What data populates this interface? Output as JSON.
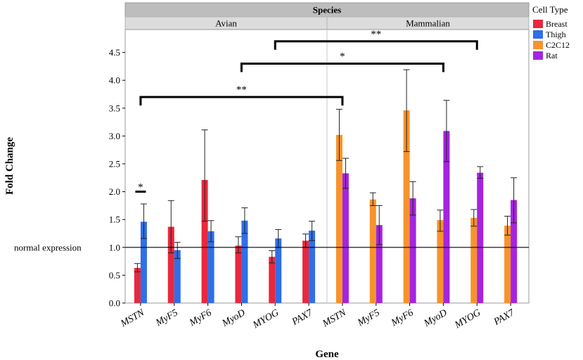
{
  "chart_data": {
    "type": "bar",
    "title": "",
    "xlabel": "Gene",
    "ylabel": "Fold Change",
    "ylim": [
      0,
      4.8
    ],
    "yticks": [
      "0.0",
      "0.5",
      "1.0",
      "1.5",
      "2.0",
      "2.5",
      "3.0",
      "3.5",
      "4.0",
      "4.5"
    ],
    "reference_line": {
      "value": 1.0,
      "label": "normal expression"
    },
    "facet_header": "Species",
    "legend_title": "Cell Type",
    "legend": [
      {
        "name": "Breast",
        "color": "#e8283c"
      },
      {
        "name": "Thigh",
        "color": "#2f6fe8"
      },
      {
        "name": "C2C12",
        "color": "#f7932b"
      },
      {
        "name": "Rat",
        "color": "#a524e0"
      }
    ],
    "panels": [
      {
        "name": "Avian",
        "categories": [
          "MSTN",
          "MyF5",
          "MyF6",
          "MyoD",
          "MYOG",
          "PAX7"
        ],
        "series": [
          {
            "name": "Breast",
            "color": "#e8283c",
            "values": [
              0.63,
              1.37,
              2.21,
              1.03,
              0.83,
              1.12
            ],
            "err_low": [
              0.56,
              0.9,
              1.47,
              0.9,
              0.72,
              1.0
            ],
            "err_high": [
              0.71,
              1.84,
              3.11,
              1.19,
              0.94,
              1.24
            ]
          },
          {
            "name": "Thigh",
            "color": "#2f6fe8",
            "values": [
              1.46,
              0.95,
              1.29,
              1.48,
              1.16,
              1.3
            ],
            "err_low": [
              1.16,
              0.8,
              1.1,
              1.25,
              1.0,
              1.12
            ],
            "err_high": [
              1.78,
              1.09,
              1.48,
              1.71,
              1.32,
              1.47
            ]
          }
        ]
      },
      {
        "name": "Mammalian",
        "categories": [
          "MSTN",
          "MyF5",
          "MyF6",
          "MyoD",
          "MYOG",
          "PAX7"
        ],
        "series": [
          {
            "name": "C2C12",
            "color": "#f7932b",
            "values": [
              3.02,
              1.86,
              3.46,
              1.49,
              1.53,
              1.39
            ],
            "err_low": [
              2.56,
              1.75,
              2.72,
              1.29,
              1.38,
              1.22
            ],
            "err_high": [
              3.48,
              1.98,
              4.19,
              1.67,
              1.68,
              1.56
            ]
          },
          {
            "name": "Rat",
            "color": "#a524e0",
            "values": [
              2.33,
              1.4,
              1.88,
              3.09,
              2.34,
              1.85
            ],
            "err_low": [
              2.06,
              1.05,
              1.58,
              2.54,
              2.24,
              1.44
            ],
            "err_high": [
              2.6,
              1.75,
              2.18,
              3.64,
              2.45,
              2.25
            ]
          }
        ]
      }
    ],
    "significance": [
      {
        "label": "*",
        "from": {
          "panel": 0,
          "category": 0,
          "series": 0
        },
        "to": {
          "panel": 0,
          "category": 0,
          "series": 1
        },
        "y": 2.0,
        "type": "flat"
      },
      {
        "label": "**",
        "from": {
          "panel": 0,
          "category": 0
        },
        "to": {
          "panel": 1,
          "category": 0
        },
        "y": 3.7,
        "type": "bracket"
      },
      {
        "label": "*",
        "from": {
          "panel": 0,
          "category": 3
        },
        "to": {
          "panel": 1,
          "category": 3
        },
        "y": 4.3,
        "type": "bracket"
      },
      {
        "label": "**",
        "from": {
          "panel": 0,
          "category": 4
        },
        "to": {
          "panel": 1,
          "category": 4
        },
        "y": 4.7,
        "type": "bracket"
      }
    ]
  }
}
